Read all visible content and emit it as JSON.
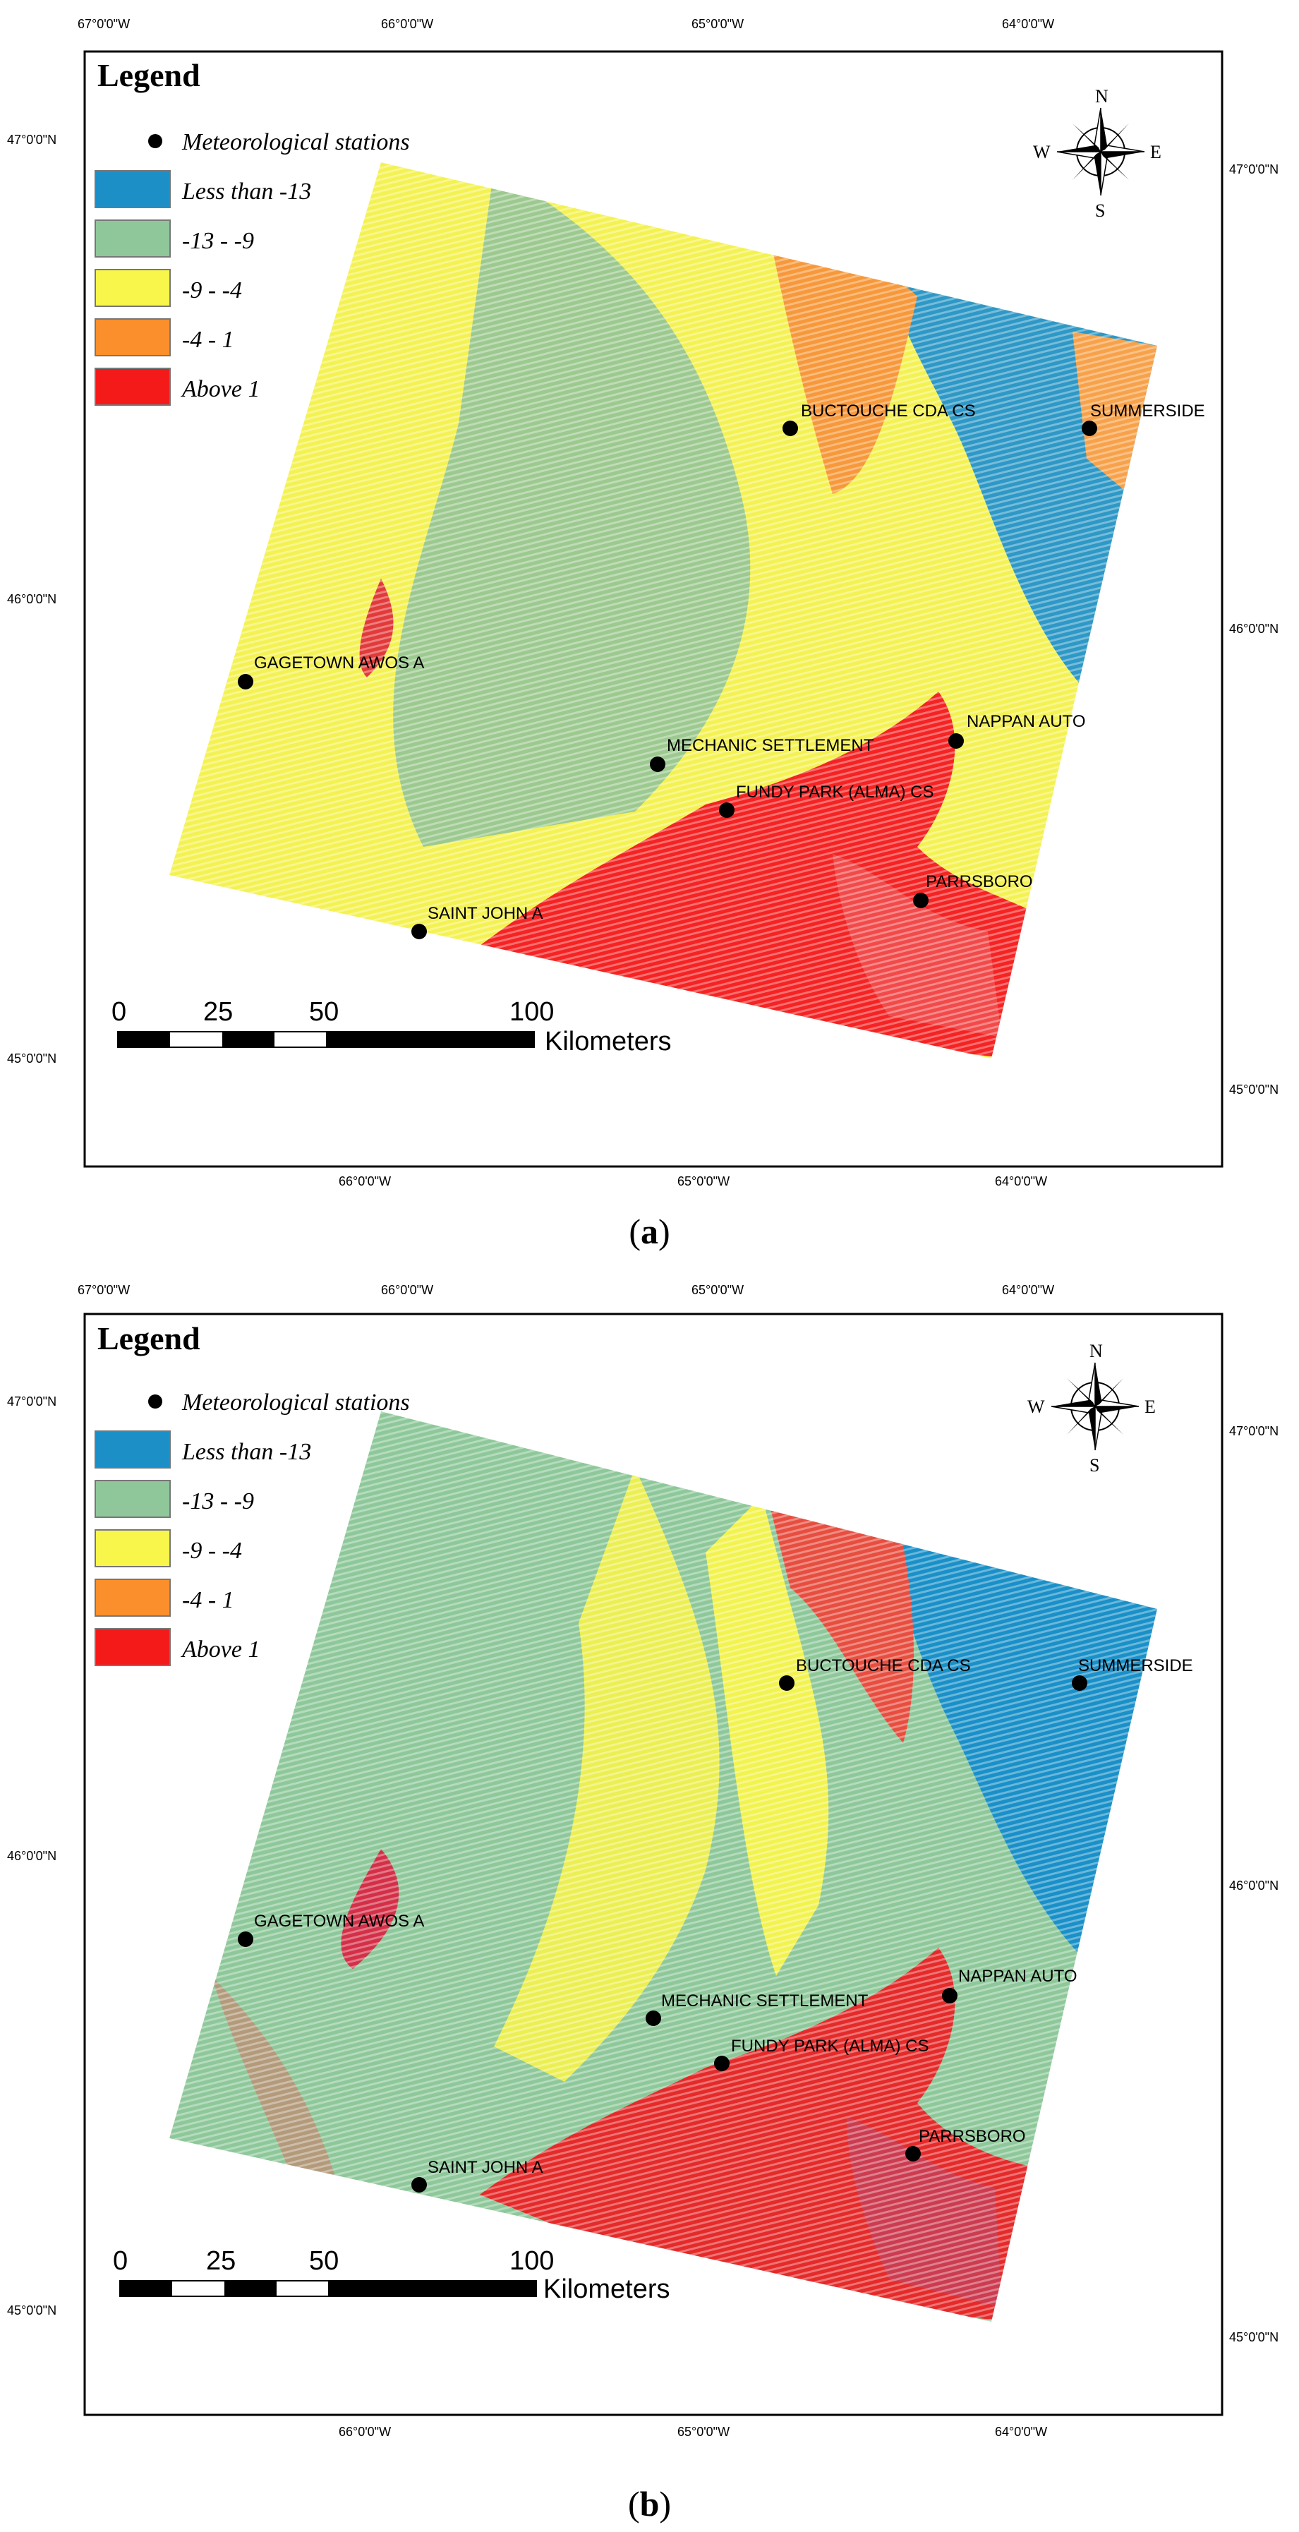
{
  "panels": [
    {
      "caption_label": "a",
      "lon_ticks_top": [
        "67°0'0\"W",
        "66°0'0\"W",
        "65°0'0\"W",
        "64°0'0\"W"
      ],
      "lon_ticks_bottom": [
        "66°0'0\"W",
        "65°0'0\"W",
        "64°0'0\"W"
      ],
      "lat_ticks_left": [
        "47°0'0\"N",
        "46°0'0\"N",
        "45°0'0\"N"
      ],
      "lat_ticks_right": [
        "47°0'0\"N",
        "46°0'0\"N",
        "45°0'0\"N"
      ]
    },
    {
      "caption_label": "b",
      "lon_ticks_top": [
        "67°0'0\"W",
        "66°0'0\"W",
        "65°0'0\"W",
        "64°0'0\"W"
      ],
      "lon_ticks_bottom": [
        "66°0'0\"W",
        "65°0'0\"W",
        "64°0'0\"W"
      ],
      "lat_ticks_left": [
        "47°0'0\"N",
        "46°0'0\"N",
        "45°0'0\"N"
      ],
      "lat_ticks_right": [
        "47°0'0\"N",
        "46°0'0\"N",
        "45°0'0\"N"
      ]
    }
  ],
  "legend": {
    "title": "Legend",
    "station_label": "Meteorological stations",
    "classes": [
      {
        "label": "Less than -13",
        "color": "#1b8fc6"
      },
      {
        "label": "-13 - -9",
        "color": "#8fc69a"
      },
      {
        "label": "-9 - -4",
        "color": "#f8f64a"
      },
      {
        "label": "-4 - 1",
        "color": "#fb8f2c"
      },
      {
        "label": "Above 1",
        "color": "#f51a1a"
      }
    ]
  },
  "compass": {
    "n": "N",
    "s": "S",
    "e": "E",
    "w": "W"
  },
  "scale_bar": {
    "ticks": [
      "0",
      "25",
      "50",
      "100"
    ],
    "unit": "Kilometers"
  },
  "stations": [
    "BUCTOUCHE CDA CS",
    "SUMMERSIDE",
    "GAGETOWN AWOS A",
    "NAPPAN AUTO",
    "MECHANIC SETTLEMENT",
    "FUNDY PARK (ALMA) CS",
    "PARRSBORO",
    "SAINT JOHN A"
  ]
}
